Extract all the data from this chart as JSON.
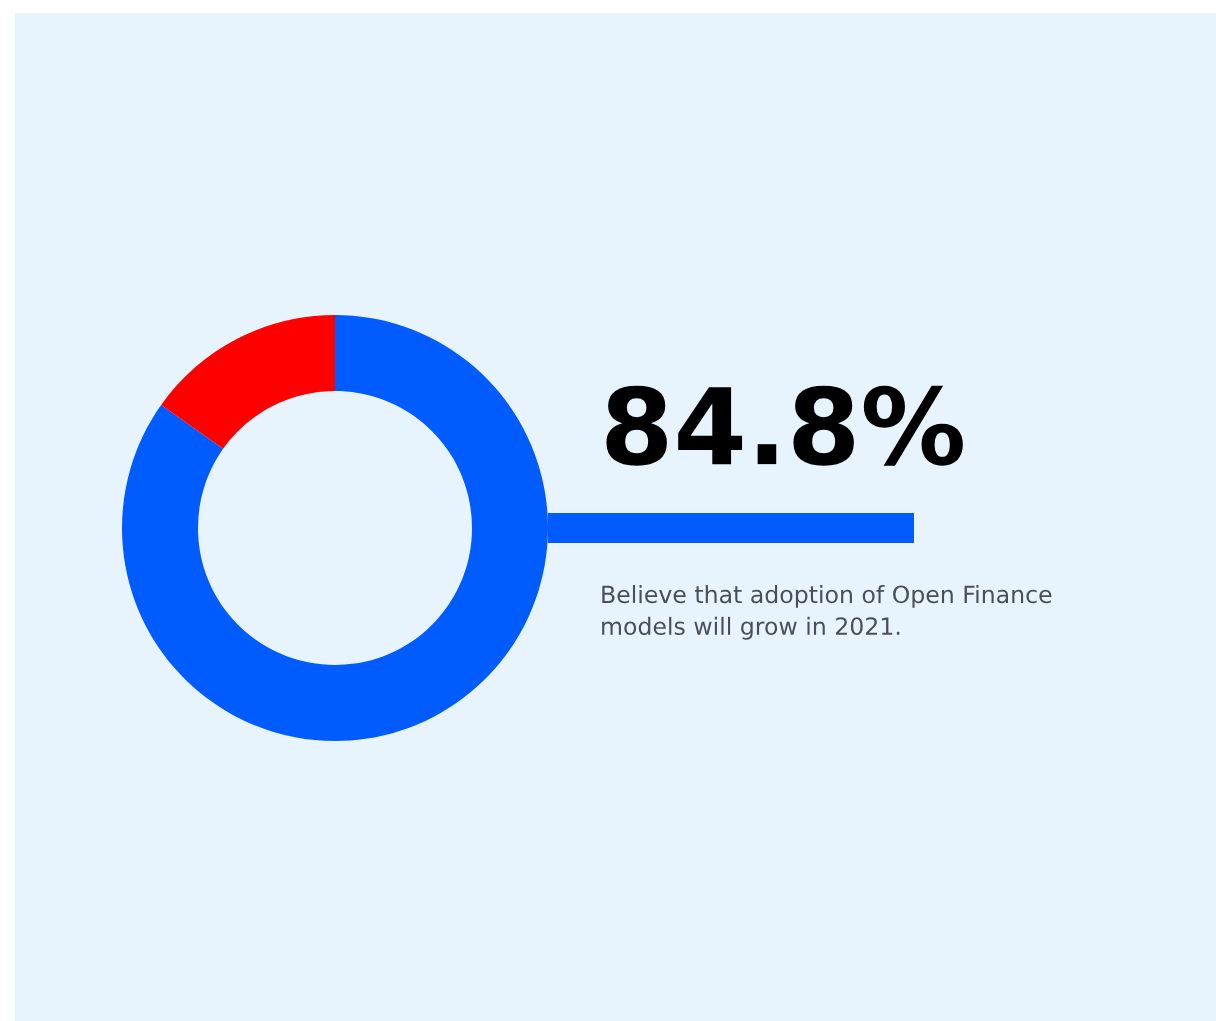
{
  "chart_data": {
    "type": "donut",
    "categories": [
      null,
      null
    ],
    "values": [
      84.8,
      15.2
    ],
    "colors": [
      "#005cff",
      "#ff0000"
    ],
    "value_labels": [
      "84.8%",
      null
    ],
    "annotations": [
      "Believe that adoption of Open Finance models will grow in 2021."
    ]
  }
}
